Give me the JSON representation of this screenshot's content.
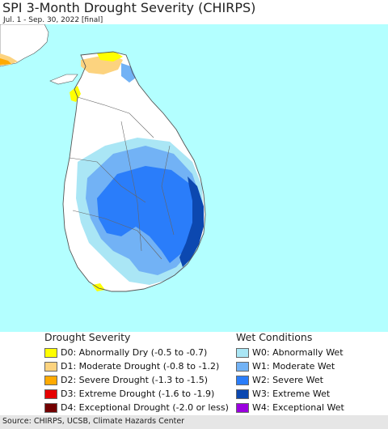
{
  "title": "SPI 3-Month Drought Severity (CHIRPS)",
  "subtitle": "Jul. 1 - Sep. 30, 2022 [final]",
  "legend": {
    "drought": {
      "heading": "Drought Severity",
      "items": [
        {
          "label": "D0: Abnormally Dry (-0.5 to -0.7)",
          "color": "#ffff00"
        },
        {
          "label": "D1: Moderate Drought (-0.8 to -1.2)",
          "color": "#fcd37f"
        },
        {
          "label": "D2: Severe Drought (-1.3 to -1.5)",
          "color": "#ffaa00"
        },
        {
          "label": "D3: Extreme Drought (-1.6 to -1.9)",
          "color": "#e60000"
        },
        {
          "label": "D4: Exceptional Drought (-2.0 or less)",
          "color": "#730000"
        }
      ]
    },
    "wet": {
      "heading": "Wet Conditions",
      "items": [
        {
          "label": "W0: Abnormally Wet",
          "color": "#aae6f5"
        },
        {
          "label": "W1: Moderate Wet",
          "color": "#72b2f5"
        },
        {
          "label": "W2: Severe Wet",
          "color": "#2a7dfa"
        },
        {
          "label": "W3: Extreme Wet",
          "color": "#0c48b0"
        },
        {
          "label": "W4: Exceptional Wet",
          "color": "#9b00e0"
        }
      ]
    }
  },
  "map_colors": {
    "ocean": "#b3ffff",
    "land": "#ffffff",
    "india": "#ffffff",
    "border": "#555555"
  },
  "footer": "Source: CHIRPS, UCSB, Climate Hazards Center"
}
